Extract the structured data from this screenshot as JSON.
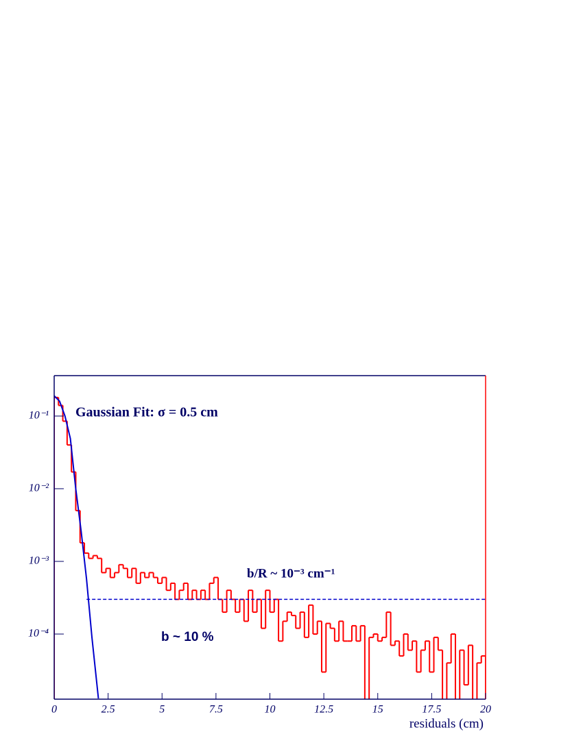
{
  "chart_data": {
    "type": "histogram",
    "title": "Gaussian Fit: σ = 0.5 cm",
    "x_label": "residuals (cm)",
    "annotations": [
      "b/R ~ 10⁻³ cm⁻¹",
      "b ~  10 %"
    ],
    "ylog": true,
    "xlim": [
      0,
      20
    ],
    "ylim": [
      1.27e-05,
      0.36
    ],
    "xticks": [
      0,
      2.5,
      5,
      7.5,
      10,
      12.5,
      15,
      17.5,
      20
    ],
    "yticks": [
      {
        "value": 0.1,
        "label": "10⁻¹"
      },
      {
        "value": 0.01,
        "label": "10⁻²"
      },
      {
        "value": 0.001,
        "label": "10⁻³"
      },
      {
        "value": 0.0001,
        "label": "10⁻⁴"
      }
    ],
    "color": "#ff0000",
    "bins": [
      0,
      0.2,
      0.4,
      0.6,
      0.8,
      1,
      1.2,
      1.4,
      1.6,
      1.8,
      2,
      2.2,
      2.4,
      2.6,
      2.8,
      3,
      3.2,
      3.4,
      3.6,
      3.8,
      4,
      4.2,
      4.4,
      4.6,
      4.8,
      5,
      5.2,
      5.4,
      5.6,
      5.8,
      6,
      6.2,
      6.4,
      6.6,
      6.8,
      7,
      7.2,
      7.4,
      7.6,
      7.8,
      8,
      8.2,
      8.4,
      8.6,
      8.8,
      9,
      9.2,
      9.4,
      9.6,
      9.8,
      10,
      10.2,
      10.4,
      10.6,
      10.8,
      11,
      11.2,
      11.4,
      11.6,
      11.8,
      12,
      12.2,
      12.4,
      12.6,
      12.8,
      13,
      13.2,
      13.4,
      13.6,
      13.8,
      14,
      14.2,
      14.4,
      14.6,
      14.8,
      15,
      15.2,
      15.4,
      15.6,
      15.8,
      16,
      16.2,
      16.4,
      16.6,
      16.8,
      17,
      17.2,
      17.4,
      17.6,
      17.8,
      18,
      18.2,
      18.4,
      18.6,
      18.8,
      19,
      19.2,
      19.4,
      19.6,
      19.8,
      20
    ],
    "values": [
      0.18,
      0.14,
      0.085,
      0.04,
      0.017,
      0.005,
      0.0018,
      0.0013,
      0.0011,
      0.0012,
      0.0011,
      0.0007,
      0.0008,
      0.0006,
      0.0007,
      0.0009,
      0.0008,
      0.0006,
      0.0008,
      0.0005,
      0.0007,
      0.0006,
      0.0007,
      0.0006,
      0.0005,
      0.0006,
      0.0004,
      0.0005,
      0.0003,
      0.0004,
      0.0005,
      0.0003,
      0.0004,
      0.0003,
      0.0004,
      0.0003,
      0.0005,
      0.0006,
      0.0003,
      0.0002,
      0.0004,
      0.0003,
      0.0002,
      0.0003,
      0.00015,
      0.0004,
      0.0002,
      0.0003,
      0.00012,
      0.0004,
      0.0002,
      0.0003,
      8e-05,
      0.00015,
      0.0002,
      0.00018,
      0.00012,
      0.0002,
      9e-05,
      0.00025,
      0.0001,
      0.00015,
      3e-05,
      0.00014,
      0.00012,
      8e-05,
      0.00015,
      8e-05,
      8e-05,
      0.00013,
      8e-05,
      0.00013,
      1e-05,
      9e-05,
      0.0001,
      8e-05,
      9e-05,
      0.0002,
      7e-05,
      8e-05,
      5e-05,
      0.0001,
      6e-05,
      8e-05,
      3e-05,
      6e-05,
      8e-05,
      3e-05,
      9e-05,
      6e-05,
      1e-05,
      4e-05,
      0.0001,
      1e-05,
      6e-05,
      2e-05,
      7e-05,
      1e-05,
      4e-05,
      5e-05
    ],
    "fit": {
      "color": "#0000cc",
      "x": [
        0,
        0.25,
        0.5,
        0.75,
        1,
        1.25,
        1.5,
        1.75,
        2.05
      ],
      "values": [
        0.19,
        0.16,
        0.1,
        0.049,
        0.01,
        0.0026,
        0.00057,
        9e-05,
        1.3e-05
      ]
    },
    "hline": {
      "y": 0.0003,
      "x": [
        1.5,
        20
      ],
      "color": "#0000cc",
      "style": "dashed"
    }
  }
}
